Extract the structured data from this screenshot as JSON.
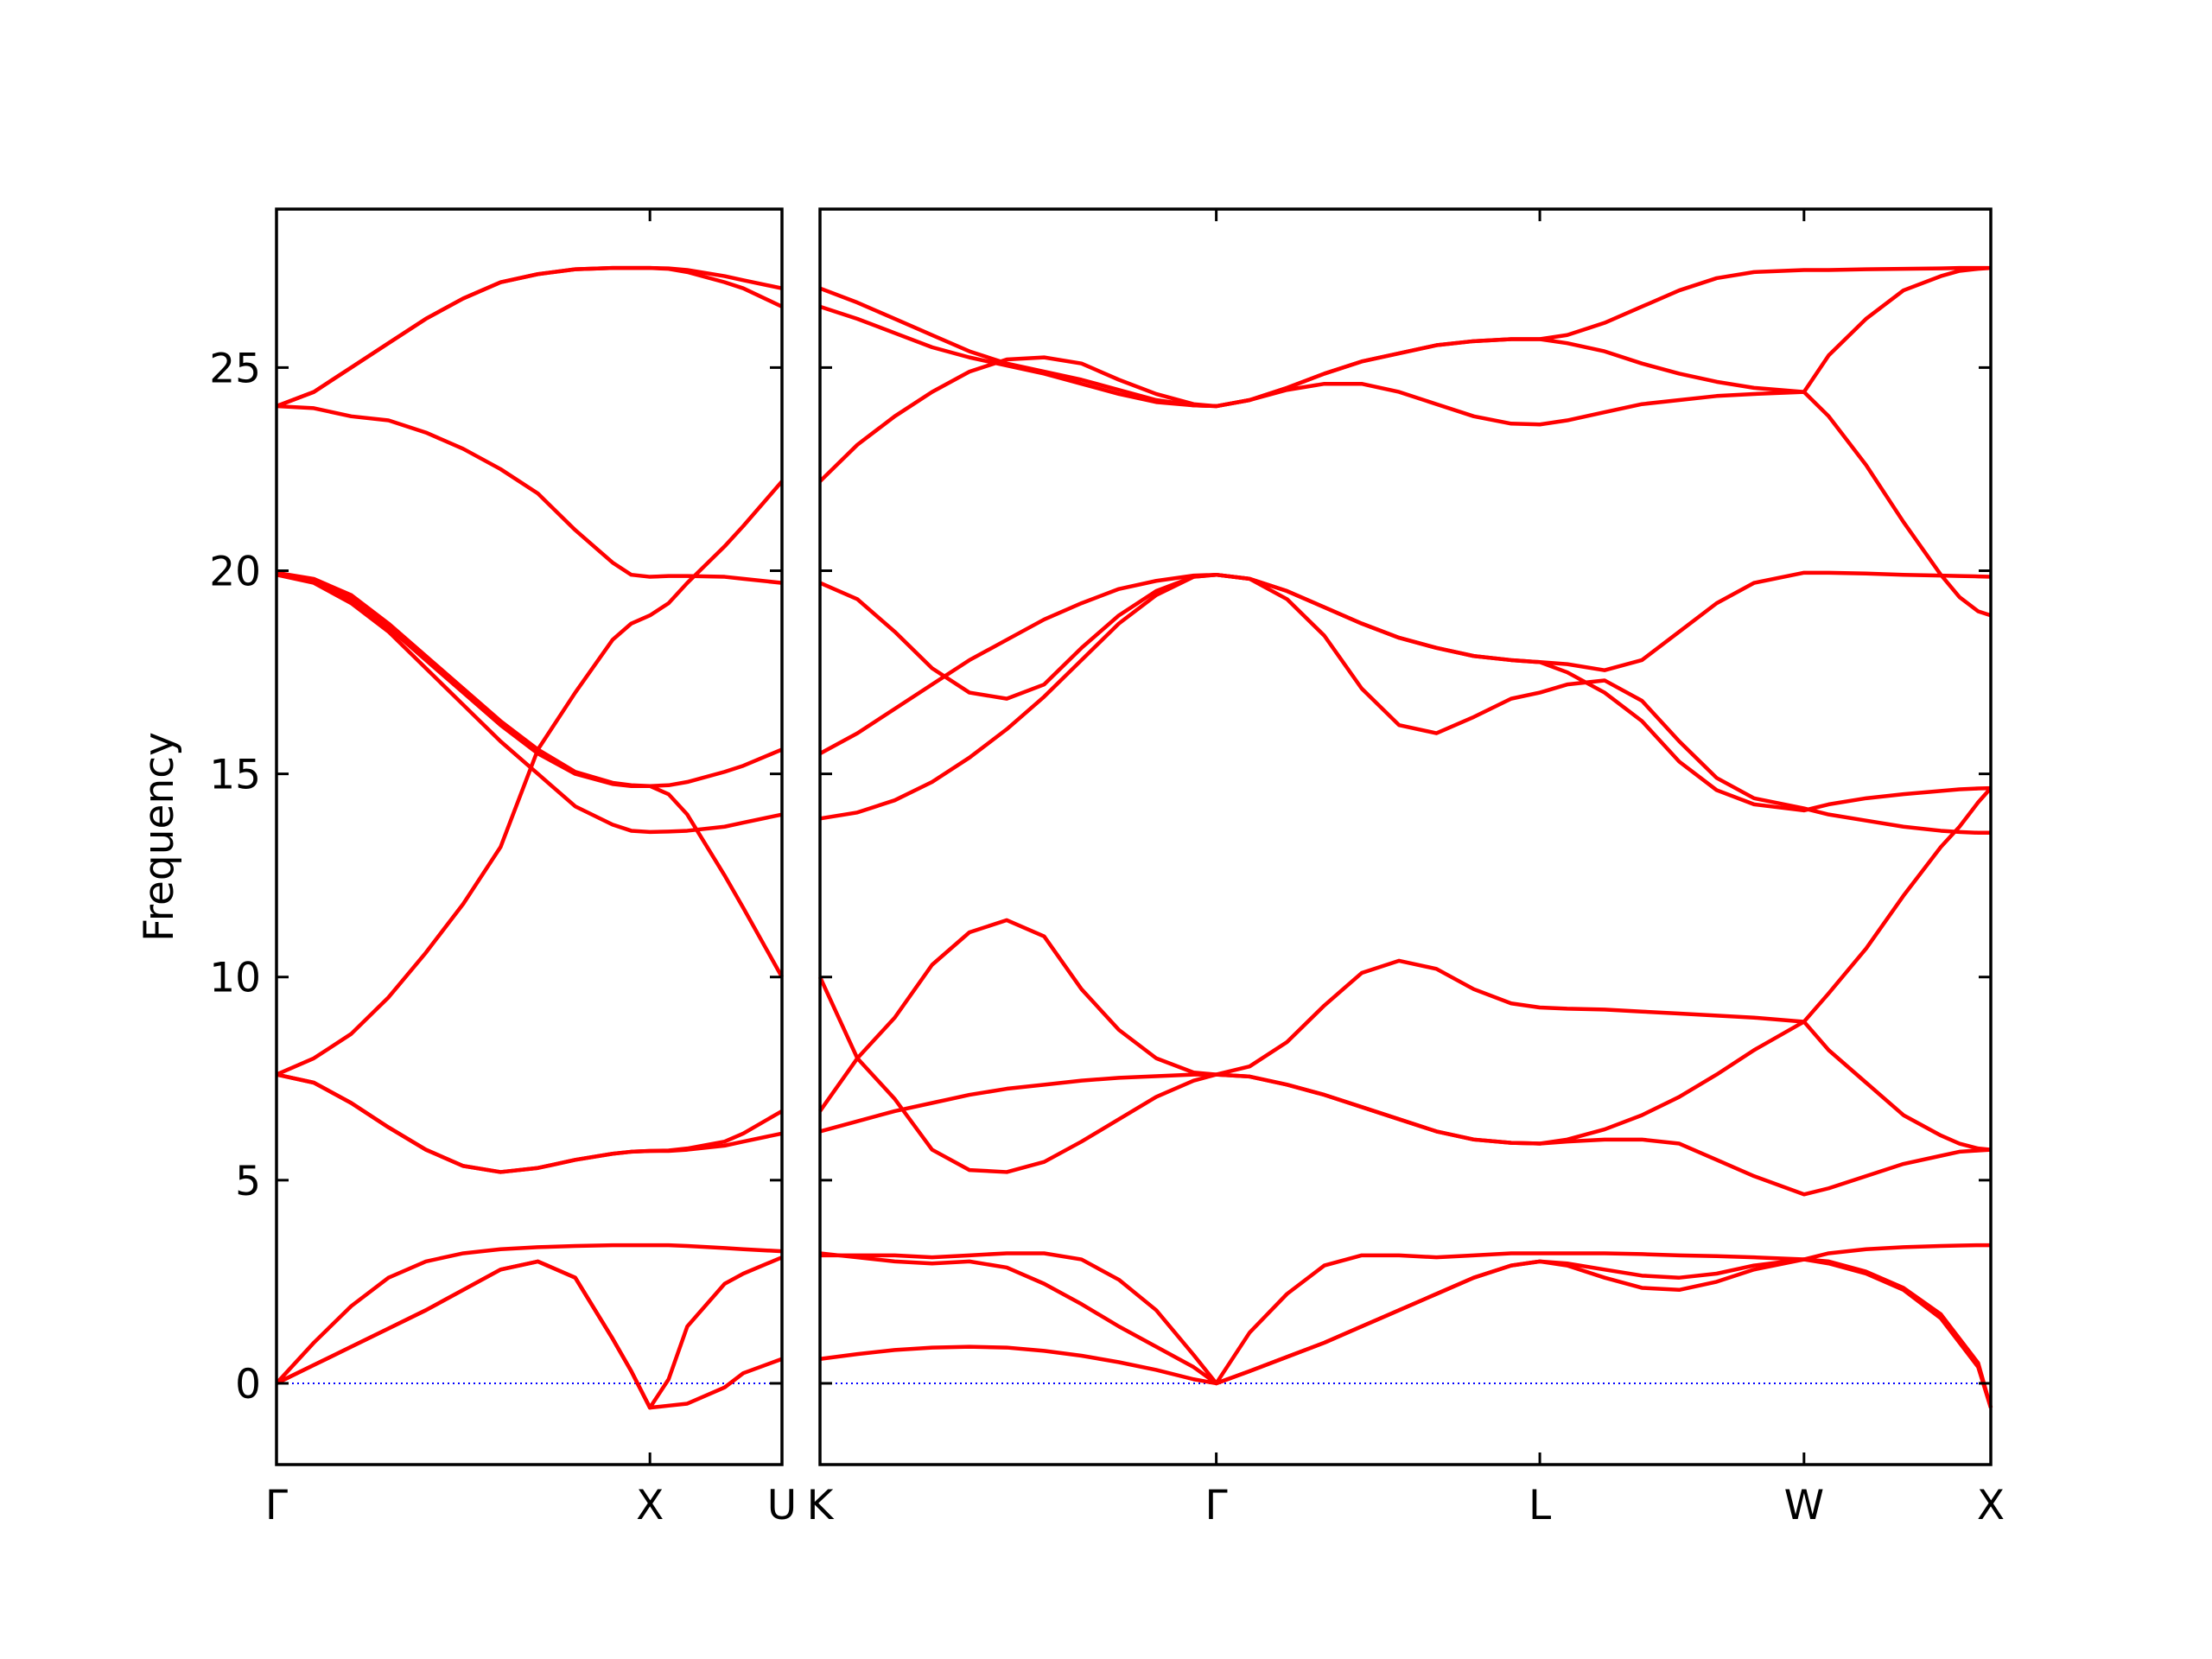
{
  "chart_data": [
    {
      "type": "line",
      "ylabel": "Frequency",
      "color": "#ff0000",
      "hline": 0,
      "hline_color": "#0000ff",
      "show_ytick_labels": true,
      "xlim": [
        0,
        1.3536
      ],
      "xticks": [
        {
          "value": 0,
          "label": "Γ"
        },
        {
          "value": 1,
          "label": "X"
        },
        {
          "value": 1.3536,
          "label": "U"
        }
      ],
      "ylim": [
        -2,
        28.9
      ],
      "yticks": [
        0,
        5,
        10,
        15,
        20,
        25
      ],
      "x": [
        0,
        0.1,
        0.2,
        0.3,
        0.4,
        0.5,
        0.6,
        0.7,
        0.8,
        0.9,
        0.95,
        1.0,
        1.05,
        1.1,
        1.2,
        1.25,
        1.3536
      ],
      "series": [
        {
          "values": [
            0,
            0.45,
            0.9,
            1.35,
            1.8,
            2.3,
            2.8,
            3.0,
            2.6,
            1.1,
            0.3,
            -0.6,
            -0.55,
            -0.5,
            -0.1,
            0.25,
            0.6
          ]
        },
        {
          "values": [
            0,
            0.45,
            0.9,
            1.35,
            1.8,
            2.3,
            2.8,
            3.0,
            2.6,
            1.1,
            0.3,
            -0.6,
            0.1,
            1.4,
            2.45,
            2.7,
            3.1
          ]
        },
        {
          "values": [
            0,
            1.0,
            1.9,
            2.6,
            3.0,
            3.2,
            3.3,
            3.35,
            3.38,
            3.4,
            3.4,
            3.4,
            3.4,
            3.38,
            3.33,
            3.3,
            3.25
          ]
        },
        {
          "values": [
            7.6,
            7.4,
            6.9,
            6.3,
            5.75,
            5.35,
            5.2,
            5.3,
            5.5,
            5.65,
            5.7,
            5.72,
            5.72,
            5.75,
            5.85,
            5.95,
            6.15
          ]
        },
        {
          "values": [
            7.6,
            7.4,
            6.9,
            6.3,
            5.75,
            5.35,
            5.2,
            5.3,
            5.5,
            5.65,
            5.7,
            5.72,
            5.73,
            5.78,
            5.95,
            6.15,
            6.7
          ]
        },
        {
          "values": [
            7.6,
            8.0,
            8.6,
            9.5,
            10.6,
            11.8,
            13.2,
            15.6,
            17.0,
            18.3,
            18.7,
            18.9,
            19.2,
            19.7,
            20.6,
            21.1,
            22.2
          ]
        },
        {
          "values": [
            19.9,
            19.75,
            19.3,
            18.6,
            17.8,
            17.0,
            16.2,
            15.5,
            15.0,
            14.75,
            14.7,
            14.7,
            14.72,
            14.8,
            15.05,
            15.2,
            15.6
          ]
        },
        {
          "values": [
            19.95,
            19.8,
            19.4,
            18.7,
            17.9,
            17.1,
            16.3,
            15.6,
            15.05,
            14.78,
            14.72,
            14.7,
            14.5,
            14.0,
            12.5,
            11.7,
            10.0
          ]
        },
        {
          "values": [
            19.9,
            19.7,
            19.2,
            18.5,
            17.6,
            16.7,
            15.8,
            15.0,
            14.2,
            13.75,
            13.6,
            13.57,
            13.58,
            13.6,
            13.7,
            13.8,
            14.0
          ]
        },
        {
          "values": [
            24.05,
            24.0,
            23.8,
            23.7,
            23.4,
            23.0,
            22.5,
            21.9,
            21.0,
            20.2,
            19.9,
            19.85,
            19.87,
            19.87,
            19.85,
            19.8,
            19.7
          ]
        },
        {
          "values": [
            24.05,
            24.4,
            25.0,
            25.6,
            26.2,
            26.7,
            27.1,
            27.3,
            27.42,
            27.45,
            27.45,
            27.45,
            27.43,
            27.35,
            27.1,
            26.95,
            26.5
          ]
        },
        {
          "values": [
            24.05,
            24.4,
            25.0,
            25.6,
            26.2,
            26.7,
            27.1,
            27.3,
            27.42,
            27.45,
            27.45,
            27.45,
            27.44,
            27.4,
            27.25,
            27.15,
            26.95
          ]
        }
      ]
    },
    {
      "type": "line",
      "color": "#ff0000",
      "hline": 0,
      "hline_color": "#0000ff",
      "show_ytick_labels": false,
      "xlim": [
        0,
        3.1338
      ],
      "xticks": [
        {
          "value": 0,
          "label": "K"
        },
        {
          "value": 1.0607,
          "label": "Γ"
        },
        {
          "value": 1.9267,
          "label": "L"
        },
        {
          "value": 2.6338,
          "label": "W"
        },
        {
          "value": 3.1338,
          "label": "X"
        }
      ],
      "ylim": [
        -2,
        28.9
      ],
      "yticks": [
        0,
        5,
        10,
        15,
        20,
        25
      ],
      "x": [
        0,
        0.1,
        0.2,
        0.3,
        0.4,
        0.5,
        0.6,
        0.7,
        0.8,
        0.9,
        1.0,
        1.0607,
        1.15,
        1.25,
        1.35,
        1.45,
        1.55,
        1.65,
        1.75,
        1.85,
        1.9267,
        2.0,
        2.1,
        2.2,
        2.3,
        2.4,
        2.5,
        2.6338,
        2.7,
        2.8,
        2.9,
        3.0,
        3.05,
        3.1,
        3.1338
      ],
      "series": [
        {
          "values": [
            0.6,
            0.72,
            0.82,
            0.88,
            0.9,
            0.88,
            0.8,
            0.68,
            0.52,
            0.33,
            0.1,
            0,
            0.3,
            0.65,
            1.0,
            1.4,
            1.8,
            2.2,
            2.6,
            2.9,
            3.0,
            2.9,
            2.6,
            2.35,
            2.3,
            2.5,
            2.8,
            3.05,
            2.95,
            2.7,
            2.3,
            1.6,
            1.0,
            0.4,
            -0.6
          ]
        },
        {
          "values": [
            3.2,
            3.1,
            3.0,
            2.95,
            3.0,
            2.85,
            2.45,
            1.95,
            1.4,
            0.9,
            0.4,
            0,
            1.25,
            2.2,
            2.9,
            3.15,
            3.15,
            3.1,
            3.15,
            3.2,
            3.2,
            3.2,
            3.2,
            3.18,
            3.15,
            3.13,
            3.1,
            3.05,
            3.2,
            3.3,
            3.35,
            3.38,
            3.39,
            3.4,
            3.4
          ]
        },
        {
          "values": [
            3.15,
            3.15,
            3.15,
            3.1,
            3.15,
            3.2,
            3.2,
            3.05,
            2.55,
            1.8,
            0.7,
            0,
            0.3,
            0.65,
            1.0,
            1.4,
            1.8,
            2.2,
            2.6,
            2.9,
            3.0,
            2.95,
            2.8,
            2.65,
            2.6,
            2.7,
            2.9,
            3.05,
            3.0,
            2.75,
            2.35,
            1.7,
            1.1,
            0.5,
            -0.6
          ]
        },
        {
          "values": [
            6.2,
            6.45,
            6.7,
            6.9,
            7.1,
            7.25,
            7.35,
            7.45,
            7.52,
            7.56,
            7.6,
            7.6,
            7.55,
            7.35,
            7.1,
            6.8,
            6.5,
            6.2,
            6.0,
            5.92,
            5.9,
            6.0,
            6.25,
            6.6,
            7.05,
            7.6,
            8.2,
            8.9,
            8.2,
            7.4,
            6.6,
            6.1,
            5.9,
            5.78,
            5.75
          ]
        },
        {
          "values": [
            6.7,
            8.0,
            9.0,
            10.3,
            11.1,
            11.4,
            11.0,
            9.7,
            8.7,
            8.0,
            7.65,
            7.6,
            7.8,
            8.4,
            9.3,
            10.1,
            10.4,
            10.2,
            9.7,
            9.35,
            9.25,
            9.22,
            9.2,
            9.15,
            9.1,
            9.05,
            9.0,
            8.9,
            9.6,
            10.7,
            12.0,
            13.2,
            13.7,
            14.3,
            14.65
          ]
        },
        {
          "values": [
            10.0,
            8.0,
            7.0,
            5.75,
            5.25,
            5.2,
            5.45,
            5.95,
            6.5,
            7.05,
            7.45,
            7.6,
            7.55,
            7.35,
            7.1,
            6.8,
            6.5,
            6.2,
            6.0,
            5.92,
            5.9,
            5.95,
            6.0,
            6.0,
            5.9,
            5.5,
            5.1,
            4.65,
            4.8,
            5.1,
            5.4,
            5.6,
            5.7,
            5.73,
            5.75
          ]
        },
        {
          "values": [
            13.9,
            14.05,
            14.35,
            14.8,
            15.4,
            16.1,
            16.9,
            17.8,
            18.7,
            19.4,
            19.85,
            19.9,
            19.8,
            19.3,
            18.4,
            17.1,
            16.2,
            16.0,
            16.4,
            16.85,
            17.0,
            17.2,
            17.3,
            16.8,
            15.8,
            14.9,
            14.4,
            14.15,
            14.0,
            13.85,
            13.7,
            13.6,
            13.57,
            13.55,
            13.55
          ]
        },
        {
          "values": [
            15.5,
            16.0,
            16.6,
            17.2,
            17.8,
            18.3,
            18.8,
            19.2,
            19.55,
            19.75,
            19.88,
            19.9,
            19.8,
            19.5,
            19.1,
            18.7,
            18.35,
            18.1,
            17.9,
            17.8,
            17.75,
            17.5,
            17.0,
            16.3,
            15.3,
            14.6,
            14.25,
            14.1,
            14.25,
            14.4,
            14.5,
            14.58,
            14.62,
            14.64,
            14.65
          ]
        },
        {
          "values": [
            19.7,
            19.3,
            18.5,
            17.6,
            17.0,
            16.85,
            17.2,
            18.1,
            18.9,
            19.5,
            19.85,
            19.9,
            19.8,
            19.5,
            19.1,
            18.7,
            18.35,
            18.1,
            17.9,
            17.8,
            17.75,
            17.7,
            17.55,
            17.8,
            18.5,
            19.2,
            19.7,
            19.95,
            19.95,
            19.93,
            19.9,
            19.88,
            19.87,
            19.86,
            19.85
          ]
        },
        {
          "values": [
            22.2,
            23.1,
            23.8,
            24.4,
            24.9,
            25.2,
            25.25,
            25.1,
            24.7,
            24.35,
            24.1,
            24.05,
            24.2,
            24.45,
            24.6,
            24.6,
            24.4,
            24.1,
            23.8,
            23.62,
            23.6,
            23.7,
            23.9,
            24.1,
            24.2,
            24.3,
            24.35,
            24.4,
            23.8,
            22.6,
            21.2,
            19.9,
            19.35,
            19.0,
            18.9
          ]
        },
        {
          "values": [
            26.5,
            26.2,
            25.85,
            25.5,
            25.25,
            25.05,
            24.85,
            24.6,
            24.35,
            24.15,
            24.07,
            24.05,
            24.2,
            24.5,
            24.85,
            25.15,
            25.35,
            25.55,
            25.65,
            25.7,
            25.7,
            25.6,
            25.4,
            25.1,
            24.85,
            24.65,
            24.5,
            24.4,
            25.3,
            26.2,
            26.9,
            27.25,
            27.38,
            27.43,
            27.45
          ]
        },
        {
          "values": [
            26.95,
            26.6,
            26.2,
            25.8,
            25.4,
            25.1,
            24.9,
            24.7,
            24.45,
            24.2,
            24.07,
            24.05,
            24.2,
            24.5,
            24.85,
            25.15,
            25.35,
            25.55,
            25.65,
            25.7,
            25.7,
            25.8,
            26.1,
            26.5,
            26.9,
            27.2,
            27.35,
            27.4,
            27.4,
            27.42,
            27.43,
            27.44,
            27.45,
            27.45,
            27.45
          ]
        }
      ]
    }
  ]
}
